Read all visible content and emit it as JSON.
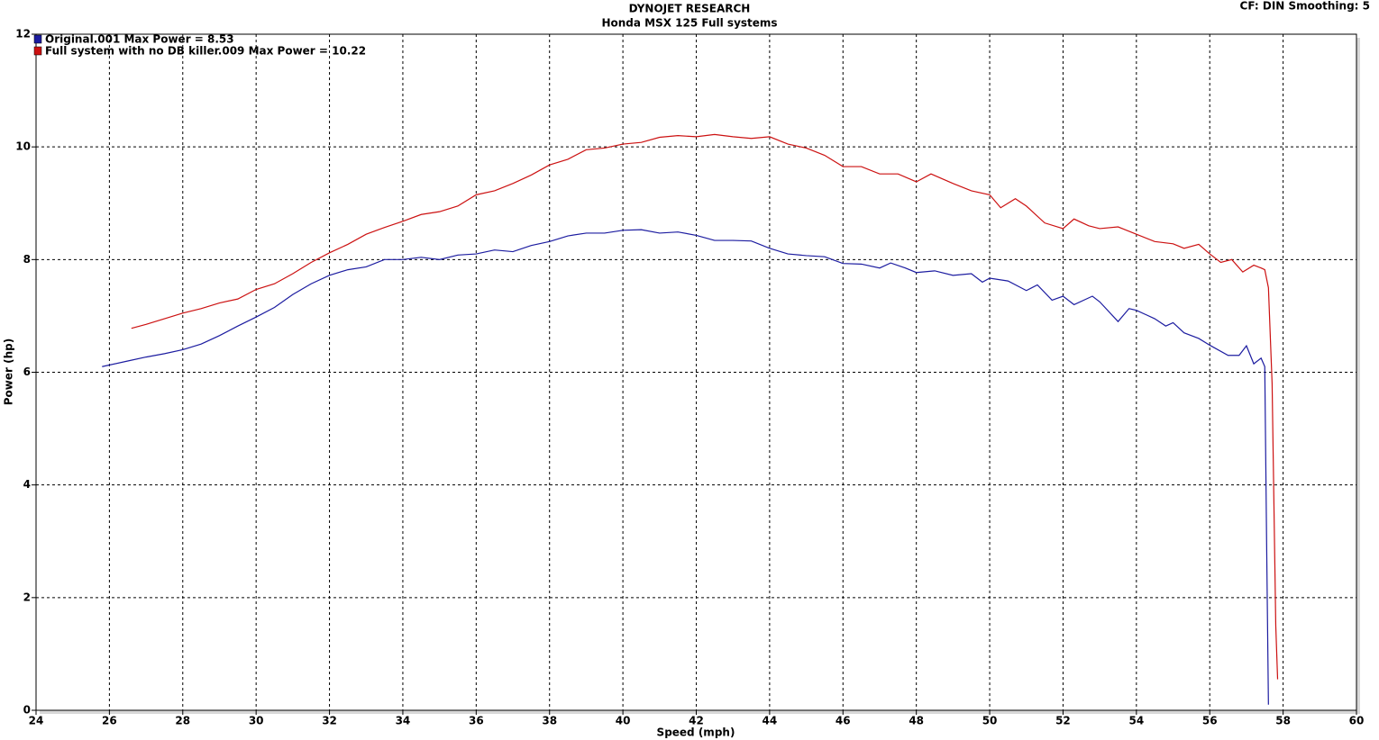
{
  "chart_data": {
    "type": "line",
    "title": "DYNOJET RESEARCH",
    "subtitle": "Honda MSX 125 Full systems",
    "annotation": "CF: DIN  Smoothing: 5",
    "x_label": "Speed (mph)",
    "y_label": "Power (hp)",
    "xlim": [
      24,
      60
    ],
    "xticks": [
      24,
      26,
      28,
      30,
      32,
      34,
      36,
      38,
      40,
      42,
      44,
      46,
      48,
      50,
      52,
      54,
      56,
      58,
      60
    ],
    "ylim": [
      0,
      12
    ],
    "yticks": [
      0,
      2,
      4,
      6,
      8,
      10,
      12
    ],
    "grid": true,
    "legend": "top-left",
    "series": [
      {
        "name": "Original.001 Max Power = 8.53",
        "color": "#1c1ca0",
        "x": [
          25.8,
          26.5,
          27,
          27.5,
          28,
          28.5,
          29,
          29.5,
          30,
          30.5,
          31,
          31.5,
          32,
          32.5,
          33,
          33.5,
          34,
          34.5,
          35,
          35.5,
          36,
          36.5,
          37,
          37.5,
          38,
          38.5,
          39,
          39.5,
          40,
          40.5,
          41,
          41.5,
          42,
          42.5,
          43,
          43.5,
          44,
          44.5,
          45,
          45.5,
          46,
          46.5,
          47,
          47.3,
          47.7,
          48,
          48.5,
          49,
          49.5,
          49.8,
          50,
          50.5,
          51,
          51.3,
          51.7,
          52,
          52.3,
          52.8,
          53,
          53.5,
          53.8,
          54,
          54.5,
          54.8,
          55,
          55.3,
          55.7,
          56,
          56.5,
          56.8,
          57,
          57.2,
          57.4,
          57.5,
          57.55,
          57.6
        ],
        "values": [
          6.1,
          6.2,
          6.27,
          6.33,
          6.4,
          6.5,
          6.65,
          6.82,
          6.98,
          7.15,
          7.38,
          7.57,
          7.72,
          7.82,
          7.87,
          8.0,
          8.0,
          8.04,
          8.0,
          8.08,
          8.1,
          8.17,
          8.14,
          8.25,
          8.32,
          8.42,
          8.47,
          8.47,
          8.52,
          8.53,
          8.47,
          8.49,
          8.43,
          8.34,
          8.34,
          8.33,
          8.2,
          8.1,
          8.07,
          8.05,
          7.93,
          7.92,
          7.85,
          7.94,
          7.85,
          7.77,
          7.8,
          7.72,
          7.75,
          7.6,
          7.67,
          7.62,
          7.45,
          7.55,
          7.28,
          7.35,
          7.2,
          7.35,
          7.25,
          6.9,
          7.13,
          7.1,
          6.95,
          6.82,
          6.88,
          6.7,
          6.6,
          6.48,
          6.3,
          6.3,
          6.47,
          6.15,
          6.25,
          6.1,
          3,
          0.1
        ]
      },
      {
        "name": "Full system with no DB killer.009 Max Power = 10.22",
        "color": "#cc1111",
        "x": [
          26.6,
          27,
          27.5,
          28,
          28.5,
          29,
          29.5,
          30,
          30.5,
          31,
          31.5,
          32,
          32.5,
          33,
          33.5,
          34,
          34.5,
          35,
          35.5,
          36,
          36.5,
          37,
          37.5,
          38,
          38.5,
          39,
          39.5,
          40,
          40.5,
          41,
          41.5,
          42,
          42.5,
          43,
          43.5,
          44,
          44.5,
          45,
          45.5,
          46,
          46.5,
          47,
          47.5,
          48,
          48.4,
          49,
          49.5,
          50,
          50.3,
          50.7,
          51,
          51.5,
          52,
          52.3,
          52.7,
          53,
          53.5,
          54,
          54.5,
          55,
          55.3,
          55.7,
          56,
          56.3,
          56.6,
          56.9,
          57.2,
          57.4,
          57.5,
          57.6,
          57.7,
          57.8,
          57.85
        ],
        "values": [
          6.78,
          6.85,
          6.95,
          7.05,
          7.13,
          7.23,
          7.3,
          7.47,
          7.57,
          7.75,
          7.95,
          8.12,
          8.27,
          8.45,
          8.57,
          8.68,
          8.8,
          8.85,
          8.95,
          9.15,
          9.22,
          9.35,
          9.5,
          9.68,
          9.78,
          9.95,
          9.98,
          10.05,
          10.08,
          10.17,
          10.2,
          10.18,
          10.22,
          10.18,
          10.15,
          10.18,
          10.05,
          9.98,
          9.85,
          9.65,
          9.65,
          9.52,
          9.52,
          9.38,
          9.52,
          9.35,
          9.22,
          9.15,
          8.92,
          9.08,
          8.95,
          8.65,
          8.55,
          8.72,
          8.6,
          8.55,
          8.58,
          8.45,
          8.32,
          8.28,
          8.2,
          8.27,
          8.1,
          7.95,
          8.0,
          7.78,
          7.9,
          7.85,
          7.82,
          7.5,
          5.8,
          1.5,
          0.55
        ]
      }
    ]
  }
}
